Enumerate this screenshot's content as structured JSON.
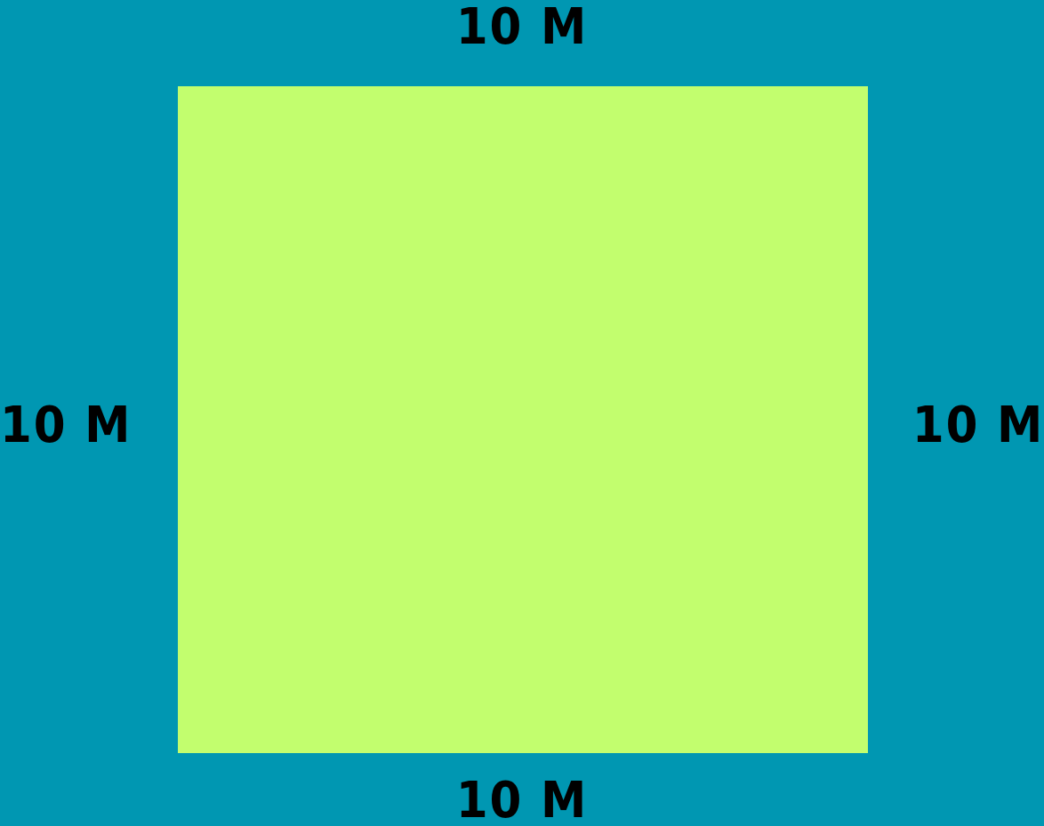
{
  "colors": {
    "background": "#0097B2",
    "square_fill": "#C2FE6E",
    "label_text": "#000000"
  },
  "diagram": {
    "shape": "square",
    "labels": {
      "top": "10 M",
      "right": "10 M",
      "bottom": "10 M",
      "left": "10 M"
    }
  }
}
